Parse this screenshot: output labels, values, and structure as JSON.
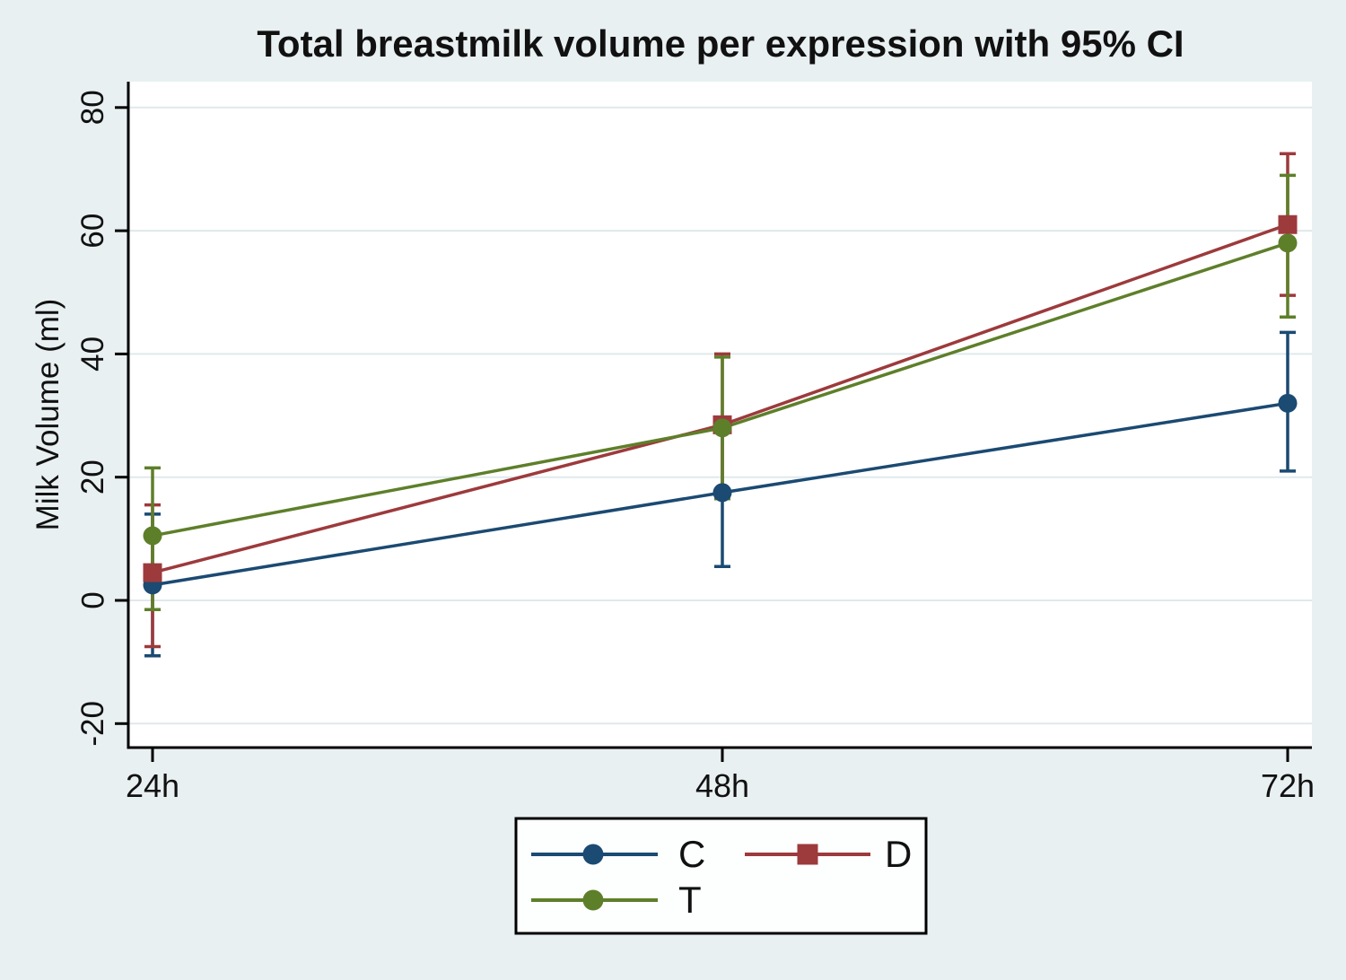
{
  "style": {
    "background": "#e9f0f2",
    "plot_bg": "#ffffff",
    "grid_color": "#dfe9ec",
    "axis_color": "#000000",
    "text_color": "#111111",
    "legend_bg": "#fdfefe",
    "legend_border": "#000000"
  },
  "chart_data": {
    "type": "line",
    "title": "Total breastmilk volume per expression with 95% CI",
    "xlabel": "",
    "ylabel": "Milk Volume (ml)",
    "categories": [
      "24h",
      "48h",
      "72h"
    ],
    "yticks": [
      80,
      60,
      40,
      20,
      0,
      -20
    ],
    "ylim": [
      -24,
      84
    ],
    "grid": true,
    "error_bars": "95% CI",
    "legend_position": "bottom-center",
    "series": [
      {
        "name": "C",
        "marker": "circle",
        "color": "#1b4a72",
        "values": [
          2.5,
          17.5,
          32
        ],
        "ci_low": [
          -9,
          5.5,
          21
        ],
        "ci_high": [
          14,
          29.5,
          43.5
        ]
      },
      {
        "name": "D",
        "marker": "square",
        "color": "#9d3a3c",
        "values": [
          4.5,
          28.5,
          61
        ],
        "ci_low": [
          -7.5,
          17,
          49.5
        ],
        "ci_high": [
          15.5,
          40,
          72.5
        ]
      },
      {
        "name": "T",
        "marker": "circle",
        "color": "#5e7f2a",
        "values": [
          10.5,
          28,
          58
        ],
        "ci_low": [
          -1.5,
          16.5,
          46
        ],
        "ci_high": [
          21.5,
          39.5,
          69
        ]
      }
    ]
  },
  "legend": {
    "labels": [
      "C",
      "D",
      "T"
    ]
  }
}
